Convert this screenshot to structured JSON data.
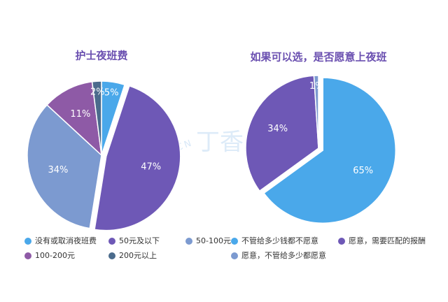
{
  "chart_data": [
    {
      "type": "pie",
      "title": "护士夜班费",
      "categories": [
        "没有或取消夜班费",
        "50元及以下",
        "50-100元",
        "100-200元",
        "200元以上"
      ],
      "values": [
        5,
        47,
        34,
        11,
        2
      ],
      "value_labels": [
        "5%",
        "47%",
        "34%",
        "11%",
        "2%"
      ],
      "colors": [
        "#4aa8ea",
        "#6e58b6",
        "#7c9ad0",
        "#8e5aa6",
        "#4b6b8c"
      ],
      "exploded": [
        false,
        true,
        false,
        false,
        false
      ]
    },
    {
      "type": "pie",
      "title": "如果可以选，是否愿意上夜班",
      "categories": [
        "不管给多少钱都不愿意",
        "愿意，需要匹配的报酬",
        "愿意，不管给多少都愿意"
      ],
      "values": [
        65,
        34,
        1
      ],
      "value_labels": [
        "65%",
        "34%",
        "1%"
      ],
      "colors": [
        "#4aa8ea",
        "#6e58b6",
        "#7c9ad0"
      ],
      "exploded": [
        true,
        false,
        false
      ]
    }
  ],
  "watermark": {
    "brand": "丁香人才",
    "site": "JOBMD.CN"
  }
}
